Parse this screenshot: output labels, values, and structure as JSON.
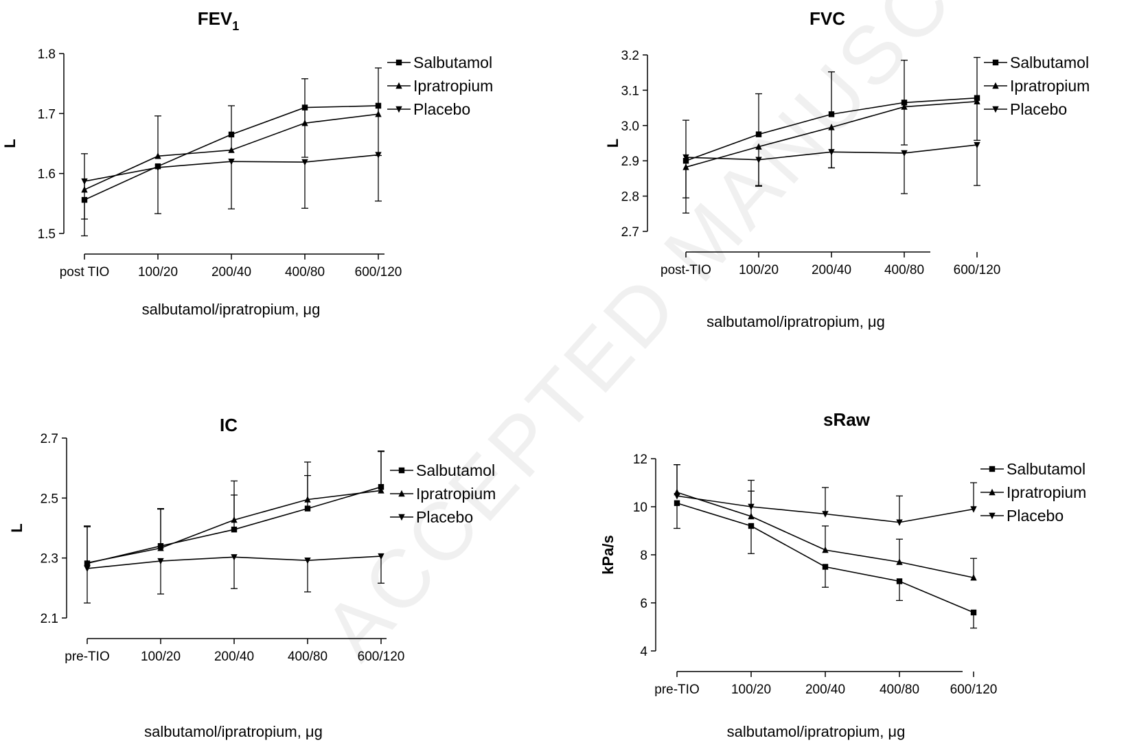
{
  "watermark": "ACCEPTED MANUSCRIPT",
  "chart_data": [
    {
      "type": "line",
      "title": "FEV",
      "title_sub": "1",
      "xlabel": "salbutamol/ipratropium, μg",
      "ylabel": "L",
      "categories": [
        "post TIO",
        "100/20",
        "200/40",
        "400/80",
        "600/120"
      ],
      "ylim": [
        1.5,
        1.8
      ],
      "yticks": [
        1.5,
        1.6,
        1.7,
        1.8
      ],
      "legend_position": "right",
      "series": [
        {
          "name": "Salbutamol",
          "marker": "square",
          "values": [
            1.556,
            1.612,
            1.665,
            1.71,
            1.713
          ],
          "error": [
            0.06,
            0.0,
            0.0,
            0.083,
            0.083
          ],
          "err_dir": "down"
        },
        {
          "name": "Ipratropium",
          "marker": "triangle-up",
          "values": [
            1.573,
            1.629,
            1.639,
            1.684,
            1.699
          ],
          "error": [
            0.06,
            0.067,
            0.074,
            0.074,
            0.077
          ],
          "err_dir": "up"
        },
        {
          "name": "Placebo",
          "marker": "triangle-down",
          "values": [
            1.587,
            1.61,
            1.62,
            1.619,
            1.631
          ],
          "error": [
            0.063,
            0.077,
            0.079,
            0.077,
            0.077
          ],
          "err_dir": "down"
        }
      ]
    },
    {
      "type": "line",
      "title": "FVC",
      "title_sub": "",
      "xlabel": "salbutamol/ipratropium, μg",
      "ylabel": "L",
      "categories": [
        "post-TIO",
        "100/20",
        "200/40",
        "400/80",
        "600/120"
      ],
      "ylim": [
        2.7,
        3.2
      ],
      "yticks": [
        2.7,
        2.8,
        2.9,
        3.0,
        3.1,
        3.2
      ],
      "legend_position": "right",
      "series": [
        {
          "name": "Salbutamol",
          "marker": "square",
          "values": [
            2.9,
            2.975,
            3.032,
            3.065,
            3.078
          ],
          "error": [
            0.115,
            0.115,
            0.12,
            0.12,
            0.115
          ],
          "err_dir": "up"
        },
        {
          "name": "Ipratropium",
          "marker": "triangle-up",
          "values": [
            2.882,
            2.94,
            2.995,
            3.053,
            3.068
          ],
          "error": [
            0.13,
            0.11,
            0.115,
            0.108,
            0.11
          ],
          "err_dir": "down"
        },
        {
          "name": "Placebo",
          "marker": "triangle-down",
          "values": [
            2.91,
            2.903,
            2.925,
            2.922,
            2.945
          ],
          "error": [
            0.115,
            0.075,
            0.045,
            0.115,
            0.115
          ],
          "err_dir": "down"
        }
      ]
    },
    {
      "type": "line",
      "title": "IC",
      "title_sub": "",
      "xlabel": "salbutamol/ipratropium, μg",
      "ylabel": "L",
      "categories": [
        "pre-TIO",
        "100/20",
        "200/40",
        "400/80",
        "600/120"
      ],
      "ylim": [
        2.1,
        2.7
      ],
      "yticks": [
        2.1,
        2.3,
        2.5,
        2.7
      ],
      "legend_position": "right",
      "series": [
        {
          "name": "Salbutamol",
          "marker": "square",
          "values": [
            2.282,
            2.34,
            2.395,
            2.465,
            2.537
          ],
          "error": [
            0.125,
            0.125,
            0.115,
            0.11,
            0.12
          ],
          "err_dir": "up"
        },
        {
          "name": "Ipratropium",
          "marker": "triangle-up",
          "values": [
            2.284,
            2.333,
            2.427,
            2.495,
            2.525
          ],
          "error": [
            0.12,
            0.13,
            0.13,
            0.125,
            0.13
          ],
          "err_dir": "up"
        },
        {
          "name": "Placebo",
          "marker": "triangle-down",
          "values": [
            2.265,
            2.29,
            2.303,
            2.292,
            2.306
          ],
          "error": [
            0.115,
            0.11,
            0.105,
            0.105,
            0.09
          ],
          "err_dir": "down"
        }
      ]
    },
    {
      "type": "line",
      "title": "sRaw",
      "title_sub": "",
      "xlabel": "salbutamol/ipratropium, μg",
      "ylabel": "kPa/s",
      "categories": [
        "pre-TIO",
        "100/20",
        "200/40",
        "400/80",
        "600/120"
      ],
      "ylim": [
        4,
        12
      ],
      "yticks": [
        4,
        6,
        8,
        10,
        12
      ],
      "legend_position": "right",
      "series": [
        {
          "name": "Salbutamol",
          "marker": "square",
          "values": [
            10.15,
            9.2,
            7.5,
            6.9,
            5.6
          ],
          "error": [
            1.05,
            1.15,
            0.85,
            0.8,
            0.65
          ],
          "err_dir": "down"
        },
        {
          "name": "Ipratropium",
          "marker": "triangle-up",
          "values": [
            10.6,
            9.6,
            8.2,
            7.7,
            7.05
          ],
          "error": [
            1.15,
            1.05,
            1.0,
            0.95,
            0.8
          ],
          "err_dir": "up"
        },
        {
          "name": "Placebo",
          "marker": "triangle-down",
          "values": [
            10.45,
            10.0,
            9.7,
            9.35,
            9.9
          ],
          "error": [
            1.3,
            1.1,
            1.1,
            1.1,
            1.1
          ],
          "err_dir": "up"
        }
      ]
    }
  ]
}
